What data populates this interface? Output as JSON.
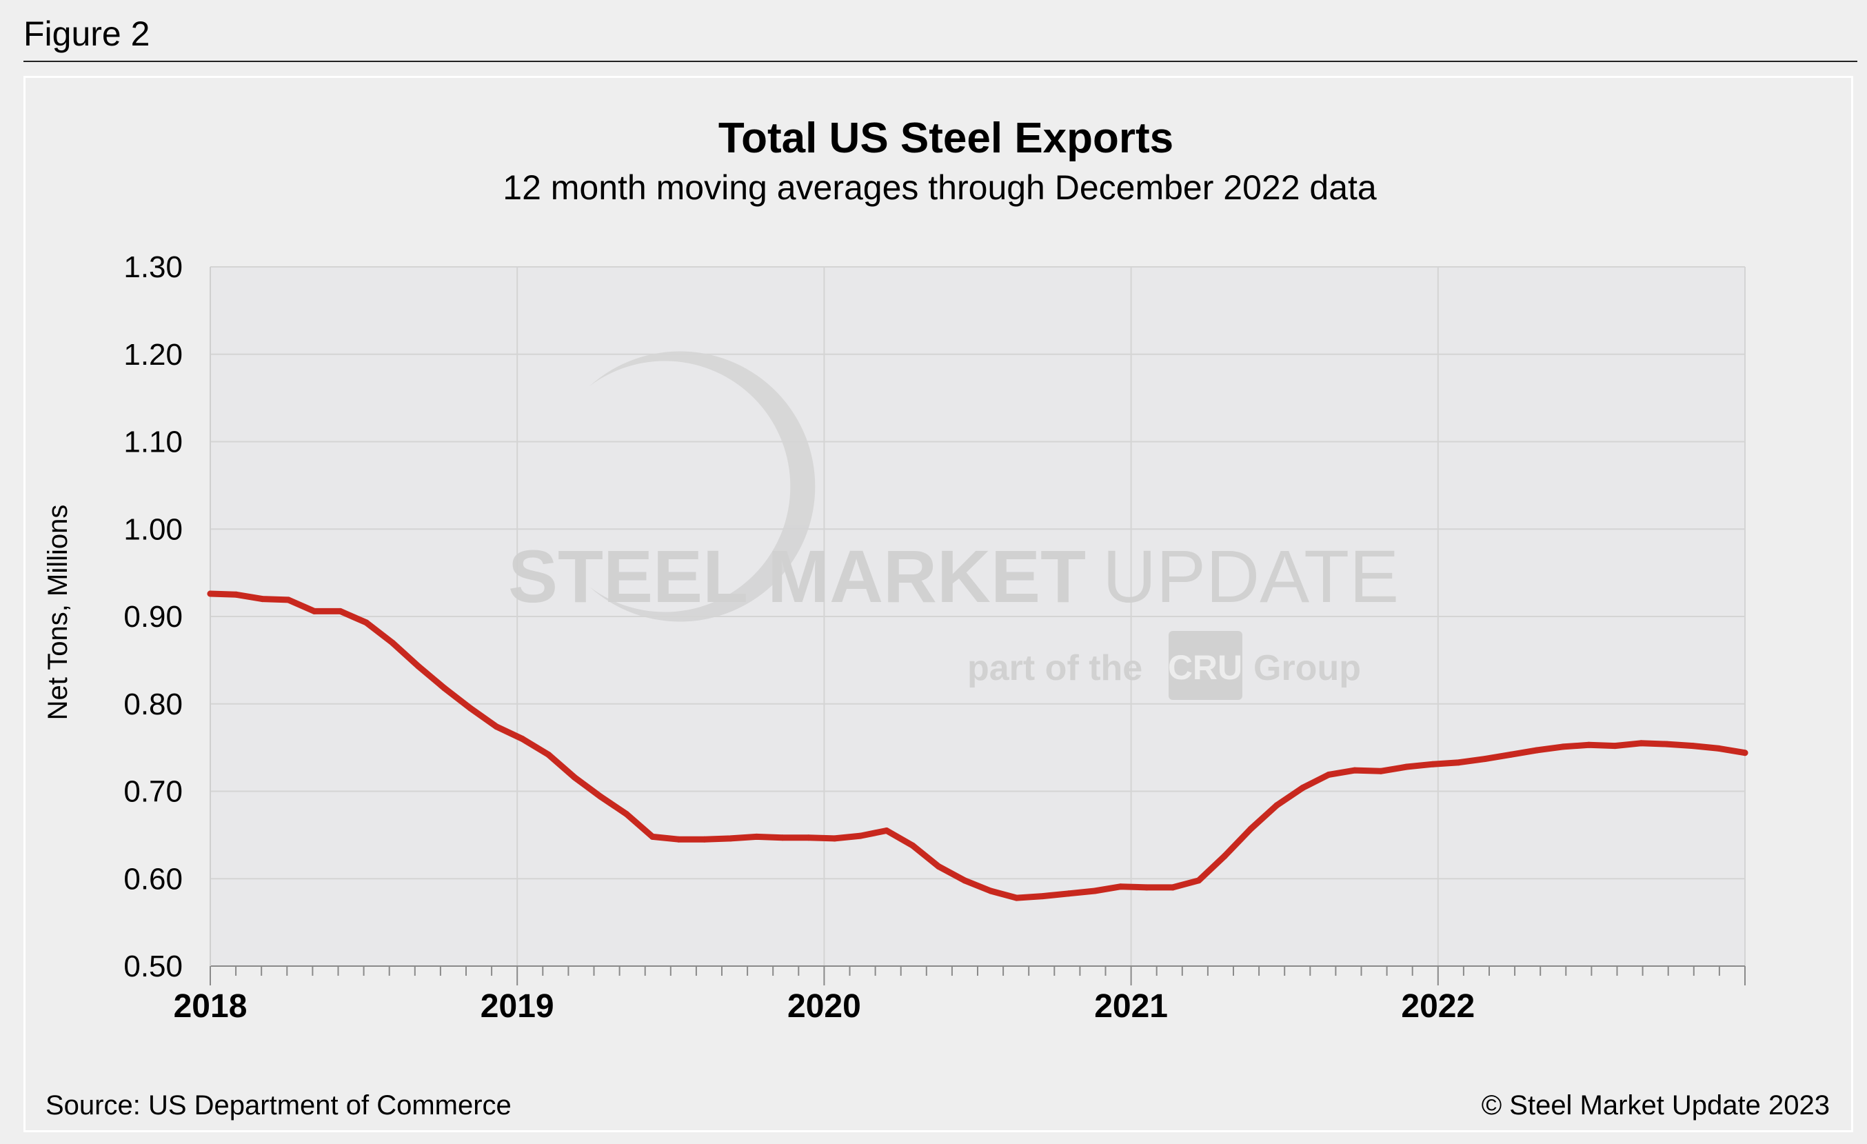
{
  "figure_label": "Figure 2",
  "source": "Source: US Department of Commerce",
  "copyright": "© Steel Market Update 2023",
  "watermark": {
    "main_bold": "STEEL MARKET",
    "main_light": "UPDATE",
    "part_of": "part of the",
    "cru": "CRU",
    "group": "Group"
  },
  "colors": {
    "line": "#c8281e",
    "plot_bg": "#e8e8ea",
    "grid": "#d4d4d4"
  },
  "chart_data": {
    "type": "line",
    "title": "Total US Steel Exports",
    "subtitle": "12 month moving averages through December 2022 data",
    "ylabel": "Net Tons, Millions",
    "xlabel": "",
    "ylim": [
      0.5,
      1.3
    ],
    "yticks": [
      "1.30",
      "1.20",
      "1.10",
      "1.00",
      "0.90",
      "0.80",
      "0.70",
      "0.60",
      "0.50"
    ],
    "ytick_values": [
      1.3,
      1.2,
      1.1,
      1.0,
      0.9,
      0.8,
      0.7,
      0.6,
      0.5
    ],
    "xticks": [
      "2018",
      "2019",
      "2020",
      "2021",
      "2022"
    ],
    "x_start_year": 2018,
    "months_total": 60,
    "grid": true,
    "legend": "none",
    "series": [
      {
        "name": "Total US Steel Exports",
        "values": [
          0.926,
          0.925,
          0.92,
          0.919,
          0.906,
          0.906,
          0.893,
          0.87,
          0.843,
          0.818,
          0.795,
          0.774,
          0.76,
          0.742,
          0.716,
          0.694,
          0.674,
          0.648,
          0.645,
          0.645,
          0.646,
          0.648,
          0.647,
          0.647,
          0.646,
          0.649,
          0.655,
          0.638,
          0.614,
          0.598,
          0.586,
          0.578,
          0.58,
          0.583,
          0.586,
          0.591,
          0.59,
          0.59,
          0.598,
          0.626,
          0.657,
          0.684,
          0.704,
          0.719,
          0.724,
          0.723,
          0.728,
          0.731,
          0.733,
          0.737,
          0.742,
          0.747,
          0.751,
          0.753,
          0.752,
          0.755,
          0.754,
          0.752,
          0.749,
          0.744
        ]
      }
    ]
  }
}
